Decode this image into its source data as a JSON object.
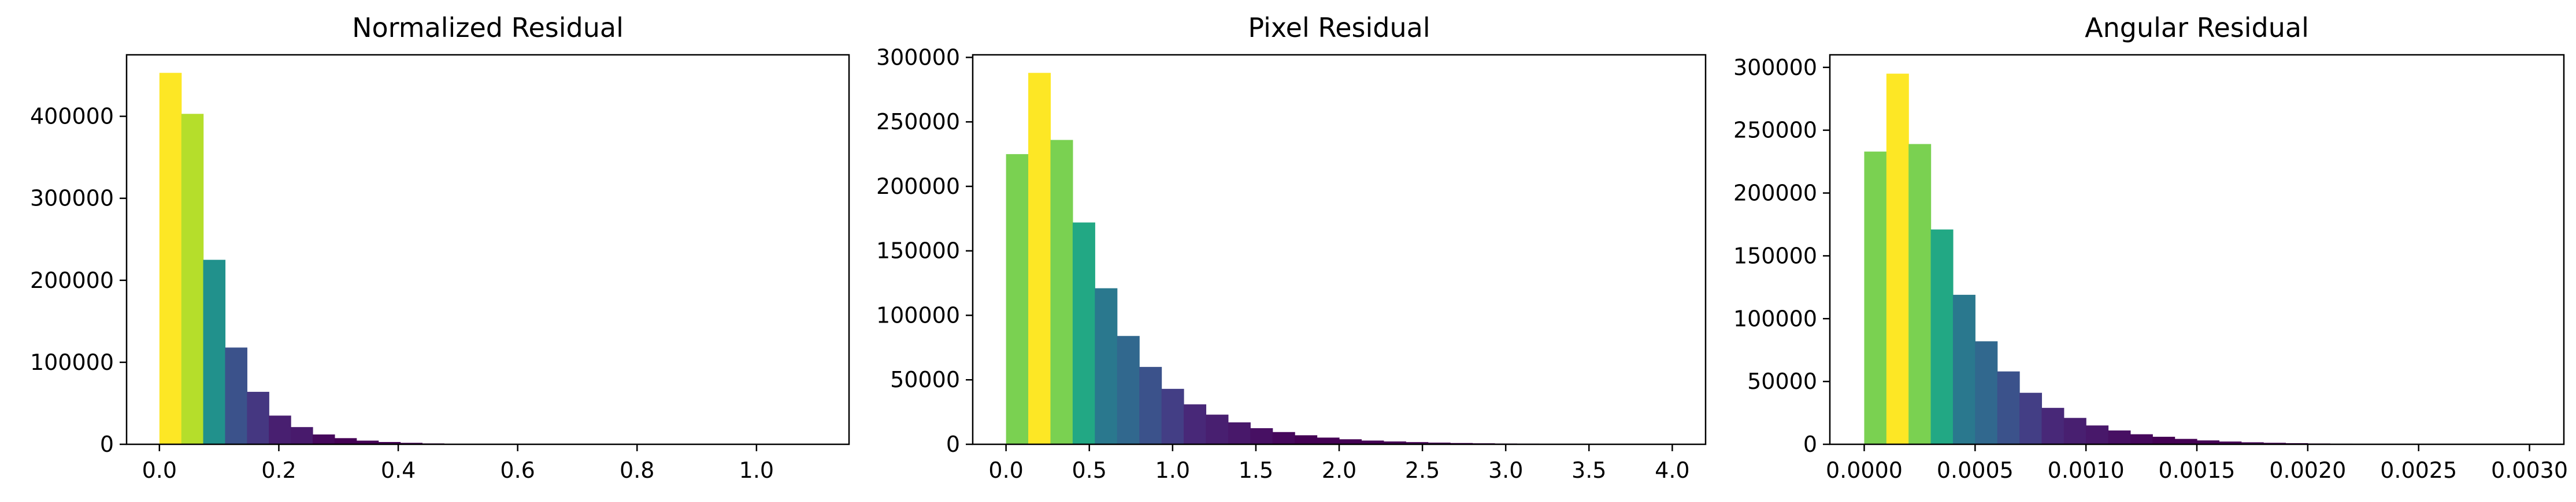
{
  "chart_data": [
    {
      "type": "bar",
      "title": "Normalized Residual",
      "xlabel": "",
      "ylabel": "",
      "xlim": [
        -0.055,
        1.155
      ],
      "ylim": [
        0,
        475000
      ],
      "xticks": [
        0.0,
        0.2,
        0.4,
        0.6,
        0.8,
        1.0
      ],
      "xtick_labels": [
        "0.0",
        "0.2",
        "0.4",
        "0.6",
        "0.8",
        "1.0"
      ],
      "yticks": [
        0,
        100000,
        200000,
        300000,
        400000
      ],
      "ytick_labels": [
        "0",
        "100000",
        "200000",
        "300000",
        "400000"
      ],
      "grid": false,
      "bin_width": 0.0367,
      "bin_left": [
        0.0,
        0.0367,
        0.0733,
        0.11,
        0.1467,
        0.1833,
        0.22,
        0.2567,
        0.2933,
        0.33,
        0.3667,
        0.4033,
        0.44,
        0.4767,
        0.5133,
        0.55,
        0.5867,
        0.6233,
        0.66,
        0.6967,
        0.7333,
        0.77,
        0.8067,
        0.8433,
        0.88,
        0.9167,
        0.9533,
        0.99,
        1.0267,
        1.0633
      ],
      "values": [
        453000,
        403000,
        225000,
        118000,
        64000,
        35000,
        21000,
        12000,
        7500,
        4500,
        2800,
        1800,
        1100,
        700,
        450,
        300,
        200,
        130,
        90,
        60,
        40,
        30,
        20,
        15,
        10,
        8,
        6,
        5,
        4,
        3
      ],
      "colors": [
        "#fde725",
        "#b5de2b",
        "#21918c",
        "#3b528b",
        "#453781",
        "#481f70",
        "#481a6c",
        "#46085c",
        "#440154",
        "#440154",
        "#440154",
        "#440154",
        "#440154",
        "#440154",
        "#440154",
        "#440154",
        "#440154",
        "#440154",
        "#440154",
        "#440154",
        "#440154",
        "#440154",
        "#440154",
        "#440154",
        "#440154",
        "#440154",
        "#440154",
        "#440154",
        "#440154",
        "#440154"
      ]
    },
    {
      "type": "bar",
      "title": "Pixel Residual",
      "xlabel": "",
      "ylabel": "",
      "xlim": [
        -0.2,
        4.2
      ],
      "ylim": [
        0,
        302000
      ],
      "xticks": [
        0.0,
        0.5,
        1.0,
        1.5,
        2.0,
        2.5,
        3.0,
        3.5,
        4.0
      ],
      "xtick_labels": [
        "0.0",
        "0.5",
        "1.0",
        "1.5",
        "2.0",
        "2.5",
        "3.0",
        "3.5",
        "4.0"
      ],
      "yticks": [
        0,
        50000,
        100000,
        150000,
        200000,
        250000,
        300000
      ],
      "ytick_labels": [
        "0",
        "50000",
        "100000",
        "150000",
        "200000",
        "250000",
        "300000"
      ],
      "grid": false,
      "bin_width": 0.1333,
      "bin_left": [
        0.0,
        0.1333,
        0.2667,
        0.4,
        0.5333,
        0.6667,
        0.8,
        0.9333,
        1.0667,
        1.2,
        1.3333,
        1.4667,
        1.6,
        1.7333,
        1.8667,
        2.0,
        2.1333,
        2.2667,
        2.4,
        2.5333,
        2.6667,
        2.8,
        2.9333,
        3.0667,
        3.2,
        3.3333,
        3.4667,
        3.6,
        3.7333,
        3.8667
      ],
      "values": [
        225000,
        288000,
        236000,
        172000,
        121000,
        84000,
        60000,
        43000,
        31000,
        23000,
        17000,
        12500,
        9500,
        7000,
        5200,
        3900,
        2900,
        2200,
        1700,
        1300,
        1000,
        800,
        600,
        500,
        400,
        300,
        250,
        200,
        150,
        100
      ],
      "colors": [
        "#7ad151",
        "#fde725",
        "#7ad151",
        "#22a884",
        "#2a788e",
        "#31688e",
        "#3b528b",
        "#433e85",
        "#482878",
        "#481f70",
        "#48186a",
        "#471063",
        "#46085c",
        "#440154",
        "#440154",
        "#440154",
        "#440154",
        "#440154",
        "#440154",
        "#440154",
        "#440154",
        "#440154",
        "#440154",
        "#440154",
        "#440154",
        "#440154",
        "#440154",
        "#440154",
        "#440154",
        "#440154"
      ]
    },
    {
      "type": "bar",
      "title": "Angular Residual",
      "xlabel": "",
      "ylabel": "",
      "xlim": [
        -0.000155,
        0.003155
      ],
      "ylim": [
        0,
        310000
      ],
      "xticks": [
        0.0,
        0.0005,
        0.001,
        0.0015,
        0.002,
        0.0025,
        0.003
      ],
      "xtick_labels": [
        "0.0000",
        "0.0005",
        "0.0010",
        "0.0015",
        "0.0020",
        "0.0025",
        "0.0030"
      ],
      "yticks": [
        0,
        50000,
        100000,
        150000,
        200000,
        250000,
        300000
      ],
      "ytick_labels": [
        "0",
        "50000",
        "100000",
        "150000",
        "200000",
        "250000",
        "300000"
      ],
      "grid": false,
      "bin_width": 0.0001,
      "bin_left": [
        0.0,
        0.0001,
        0.0002,
        0.0003,
        0.0004,
        0.0005,
        0.0006,
        0.0007,
        0.0008,
        0.0009,
        0.001,
        0.0011,
        0.0012,
        0.0013,
        0.0014,
        0.0015,
        0.0016,
        0.0017,
        0.0018,
        0.0019,
        0.002,
        0.0021,
        0.0022,
        0.0023,
        0.0024,
        0.0025,
        0.0026,
        0.0027,
        0.0028,
        0.0029
      ],
      "values": [
        233000,
        295000,
        239000,
        171000,
        119000,
        82000,
        58000,
        41000,
        29000,
        21000,
        15000,
        11000,
        8000,
        6000,
        4300,
        3100,
        2200,
        1600,
        1200,
        900,
        650,
        480,
        350,
        260,
        190,
        140,
        100,
        75,
        55,
        40
      ],
      "colors": [
        "#7ad151",
        "#fde725",
        "#7ad151",
        "#22a884",
        "#2a788e",
        "#31688e",
        "#3b528b",
        "#433e85",
        "#482878",
        "#481f70",
        "#48186a",
        "#471063",
        "#46085c",
        "#440154",
        "#440154",
        "#440154",
        "#440154",
        "#440154",
        "#440154",
        "#440154",
        "#440154",
        "#440154",
        "#440154",
        "#440154",
        "#440154",
        "#440154",
        "#440154",
        "#440154",
        "#440154",
        "#440154"
      ]
    }
  ]
}
